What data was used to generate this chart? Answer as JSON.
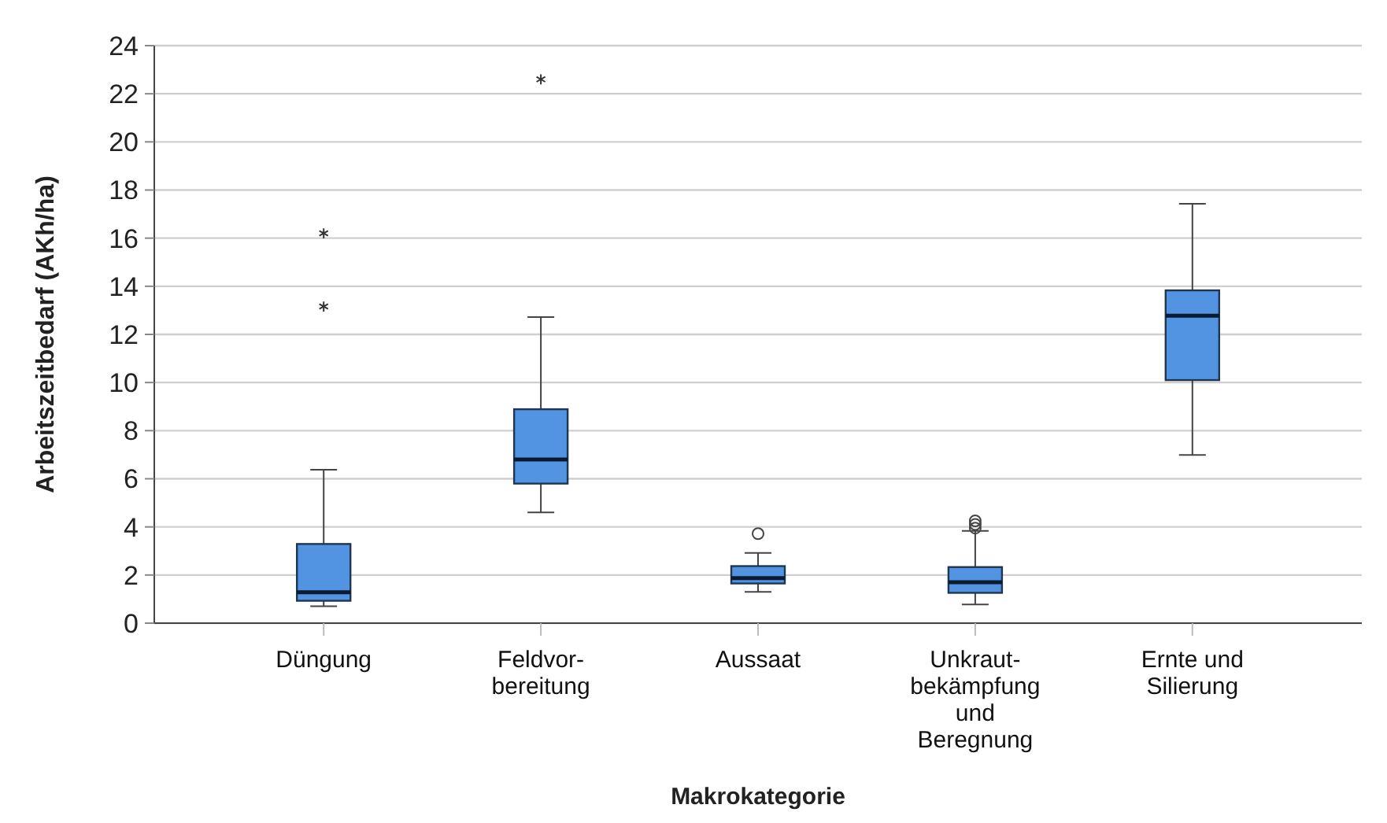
{
  "chart_data": {
    "type": "box",
    "xlabel": "Makrokategorie",
    "ylabel": "Arbeitszeitbedarf (AKh/ha)",
    "categories": [
      "Düngung",
      "Feldvor-\nbereitung",
      "Aussaat",
      "Unkraut-\nbekämpfung\nund\nBeregnung",
      "Ernte und\nSilierung"
    ],
    "color": "#5294e2",
    "boxes": [
      {
        "low": 0.7,
        "q1": 0.93,
        "median": 1.28,
        "q3": 3.29,
        "high": 6.38,
        "outliers": [
          13.16,
          16.2
        ]
      },
      {
        "low": 4.6,
        "q1": 5.8,
        "median": 6.8,
        "q3": 8.89,
        "high": 12.72,
        "outliers": [
          22.6
        ]
      },
      {
        "low": 1.3,
        "q1": 1.65,
        "median": 1.87,
        "q3": 2.37,
        "high": 2.92,
        "outliers": [
          3.72
        ]
      },
      {
        "low": 0.78,
        "q1": 1.26,
        "median": 1.7,
        "q3": 2.33,
        "high": 3.83,
        "outliers": [
          3.95,
          4.1,
          4.25
        ]
      },
      {
        "low": 6.99,
        "q1": 10.1,
        "median": 12.78,
        "q3": 13.83,
        "high": 17.43
      }
    ],
    "ylim": [
      0,
      24
    ],
    "yticks": [
      0,
      2,
      4,
      6,
      8,
      10,
      12,
      14,
      16,
      18,
      20,
      22,
      24
    ],
    "grid": "y"
  }
}
